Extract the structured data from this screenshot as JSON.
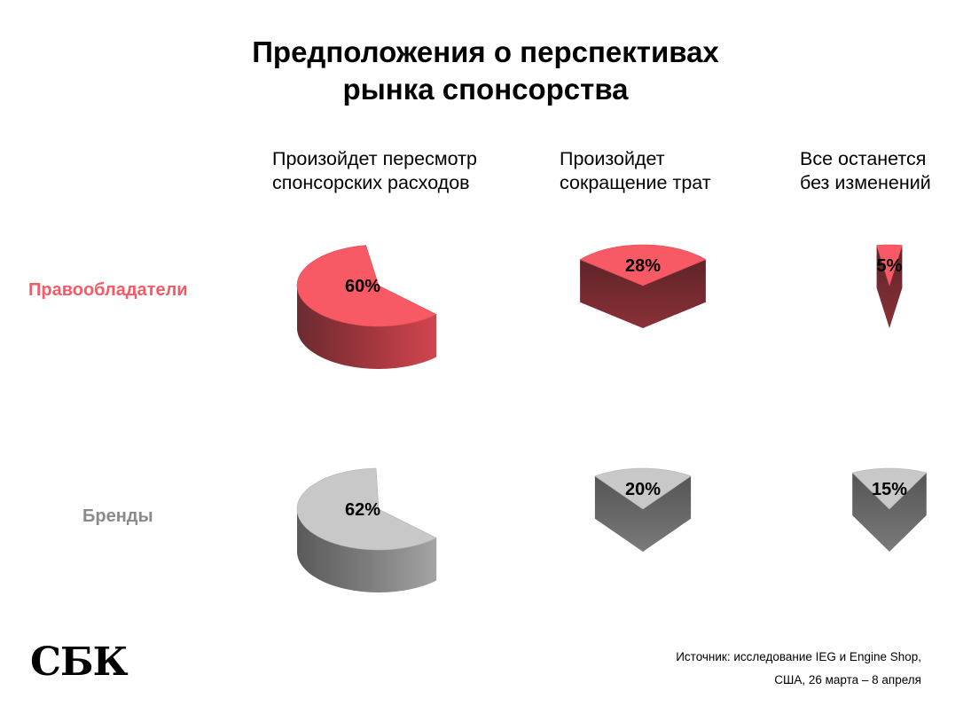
{
  "title": {
    "line1": "Предположения о перспективах",
    "line2": "рынка спонсорства"
  },
  "logo": "СБК",
  "source": {
    "line1": "Источник: исследование IEG и Engine Shop,",
    "line2": "США, 26 марта – 8 апреля"
  },
  "colors": {
    "rights_holders": "#f75a65",
    "brands": "#c8c8c8",
    "label_rights_holders": "#f75a65",
    "label_brands": "#8a8a8a"
  },
  "chart_data": {
    "type": "pie",
    "title": "Предположения о перспективах рынка спонсорства",
    "categories": [
      [
        "Произойдет пересмотр",
        "спонсорских расходов"
      ],
      [
        "Произойдет",
        "сокращение трат"
      ],
      [
        "Все останется",
        "без изменений"
      ]
    ],
    "series": [
      {
        "name": "Правообладатели",
        "values": [
          60,
          28,
          5
        ],
        "labels": [
          "60%",
          "28%",
          "5%"
        ]
      },
      {
        "name": "Бренды",
        "values": [
          62,
          20,
          15
        ],
        "labels": [
          "62%",
          "20%",
          "15%"
        ]
      }
    ],
    "unit": "%"
  }
}
